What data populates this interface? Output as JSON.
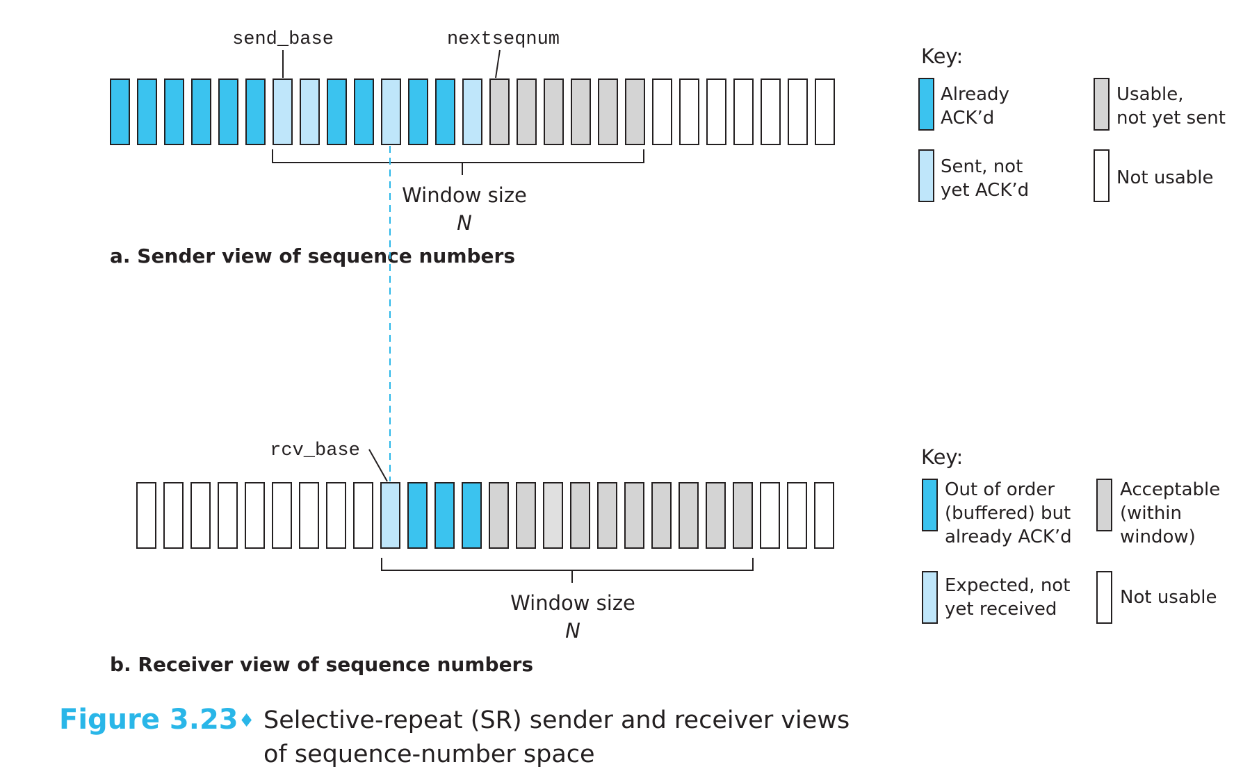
{
  "colors": {
    "acked": "#3bc3ef",
    "sent": "#bfe6fa",
    "usable": "#d4d4d4",
    "acceptable_light": "#e0e0e0",
    "not_usable": "#ffffff",
    "stroke": "#231f20",
    "caption_accent": "#29b6e8",
    "dashed": "#29b6e8"
  },
  "sender": {
    "send_base_label": "send_base",
    "nextseqnum_label": "nextseqnum",
    "cells": [
      "acked",
      "acked",
      "acked",
      "acked",
      "acked",
      "acked",
      "sent",
      "sent",
      "acked",
      "acked",
      "sent",
      "acked",
      "acked",
      "sent",
      "usable",
      "usable",
      "usable",
      "usable",
      "usable",
      "usable",
      "empty",
      "empty",
      "empty",
      "empty",
      "empty",
      "empty",
      "empty"
    ],
    "window_label": "Window size",
    "window_n": "N",
    "caption": "a. Sender view of sequence numbers"
  },
  "receiver": {
    "rcv_base_label": "rcv_base",
    "cells": [
      "empty",
      "empty",
      "empty",
      "empty",
      "empty",
      "empty",
      "empty",
      "empty",
      "empty",
      "sent",
      "acked",
      "acked",
      "acked",
      "usable",
      "usable",
      "light",
      "usable",
      "usable",
      "usable",
      "usable",
      "usable",
      "usable",
      "usable",
      "empty",
      "empty",
      "empty"
    ],
    "window_label": "Window size",
    "window_n": "N",
    "caption": "b. Receiver view of sequence numbers"
  },
  "sender_key": {
    "title": "Key:",
    "items": [
      {
        "type": "acked",
        "lines": [
          "Already",
          "ACK’d"
        ]
      },
      {
        "type": "usable",
        "lines": [
          "Usable,",
          "not yet sent"
        ]
      },
      {
        "type": "sent",
        "lines": [
          "Sent, not",
          "yet ACK’d"
        ]
      },
      {
        "type": "empty",
        "lines": [
          "Not usable"
        ]
      }
    ]
  },
  "receiver_key": {
    "title": "Key:",
    "items": [
      {
        "type": "acked",
        "lines": [
          "Out of order",
          "(buffered) but",
          "already ACK’d"
        ]
      },
      {
        "type": "usable",
        "lines": [
          "Acceptable",
          "(within",
          "window)"
        ]
      },
      {
        "type": "sent",
        "lines": [
          "Expected, not",
          "yet received"
        ]
      },
      {
        "type": "empty",
        "lines": [
          "Not usable"
        ]
      }
    ]
  },
  "figure": {
    "number": "Figure 3.23",
    "bullet": "♦",
    "title_line1": "Selective-repeat (SR) sender and receiver views",
    "title_line2": "of sequence-number space"
  }
}
